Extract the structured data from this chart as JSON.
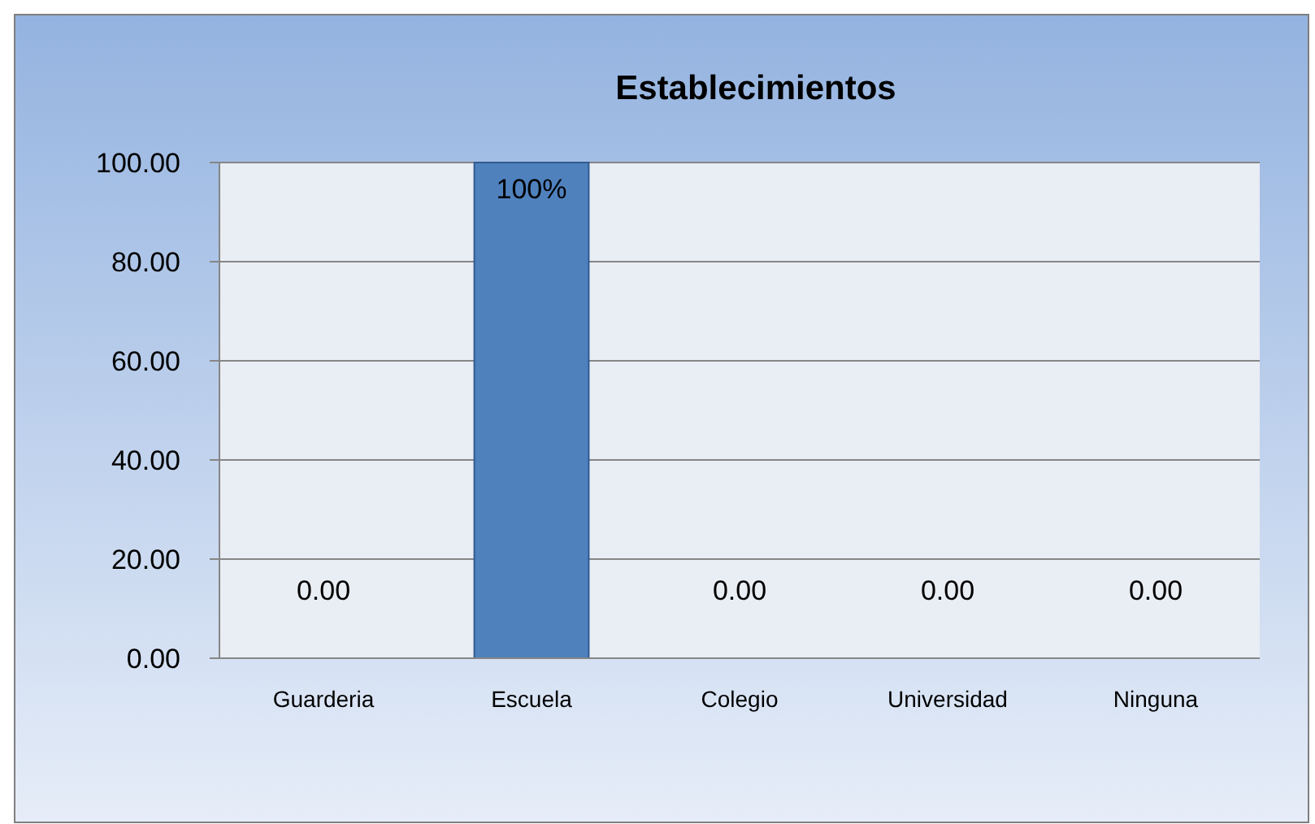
{
  "chart_data": {
    "type": "bar",
    "title": "Establecimientos",
    "categories": [
      "Guarderia",
      "Escuela",
      "Colegio",
      "Universidad",
      "Ninguna"
    ],
    "values": [
      0,
      100,
      0,
      0,
      0
    ],
    "value_labels": [
      "0.00",
      "100%",
      "0.00",
      "0.00",
      "0.00"
    ],
    "color": "#4f81bd",
    "ylim": [
      0,
      100
    ],
    "yticks": [
      {
        "value": 0,
        "label": "0.00"
      },
      {
        "value": 20,
        "label": "20.00"
      },
      {
        "value": 40,
        "label": "40.00"
      },
      {
        "value": 60,
        "label": "60.00"
      },
      {
        "value": 80,
        "label": "80.00"
      },
      {
        "value": 100,
        "label": "100.00"
      }
    ],
    "grid": "y"
  }
}
